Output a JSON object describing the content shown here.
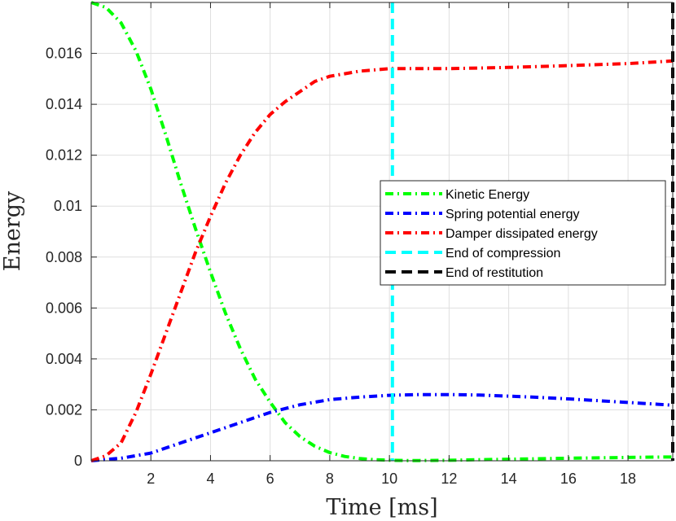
{
  "chart_data": {
    "type": "line",
    "xlabel": "Time [ms]",
    "ylabel": "Energy",
    "xlim": [
      0,
      19.5
    ],
    "ylim": [
      0,
      0.018
    ],
    "xticks": [
      2,
      4,
      6,
      8,
      10,
      12,
      14,
      16,
      18
    ],
    "yticks": [
      0,
      0.002,
      0.004,
      0.006,
      0.008,
      0.01,
      0.012,
      0.014,
      0.016
    ],
    "ytick_labels": [
      "0",
      "0.002",
      "0.004",
      "0.006",
      "0.008",
      "0.01",
      "0.012",
      "0.014",
      "0.016"
    ],
    "grid": true,
    "legend_position": "right",
    "series": [
      {
        "name": "Kinetic Energy",
        "color": "#00ff00",
        "style": "dashdot",
        "x": [
          0,
          0.5,
          1,
          1.5,
          2,
          2.5,
          3,
          3.5,
          4,
          4.5,
          5,
          5.5,
          6,
          6.5,
          7,
          7.5,
          8,
          8.5,
          9,
          9.5,
          10,
          10.5,
          11,
          12,
          13,
          14,
          16,
          18,
          19.5
        ],
        "y": [
          0.018,
          0.0178,
          0.0172,
          0.0161,
          0.0146,
          0.0128,
          0.0109,
          0.0091,
          0.0074,
          0.0058,
          0.0044,
          0.0032,
          0.0023,
          0.0015,
          0.00095,
          0.00057,
          0.00032,
          0.00017,
          9e-05,
          4e-05,
          2e-05,
          1e-05,
          1e-05,
          2e-05,
          4e-05,
          6e-05,
          0.0001,
          0.00013,
          0.00015
        ]
      },
      {
        "name": "Spring potential energy",
        "color": "#0000ff",
        "style": "dashdot",
        "x": [
          0,
          1,
          2,
          3,
          4,
          5,
          6,
          7,
          8,
          9,
          10,
          11,
          12,
          13,
          14,
          15,
          16,
          17,
          18,
          19,
          19.5
        ],
        "y": [
          0,
          0.0001,
          0.0003,
          0.0007,
          0.0011,
          0.0015,
          0.0019,
          0.0022,
          0.0024,
          0.0025,
          0.00257,
          0.0026,
          0.0026,
          0.00258,
          0.00254,
          0.00249,
          0.00243,
          0.00236,
          0.00229,
          0.00222,
          0.00218
        ]
      },
      {
        "name": "Damper dissipated energy",
        "color": "#ff0000",
        "style": "dashdot",
        "x": [
          0,
          0.5,
          1,
          1.5,
          2,
          2.5,
          3,
          3.5,
          4,
          4.5,
          5,
          5.5,
          6,
          6.5,
          7,
          7.5,
          8,
          8.5,
          9,
          9.5,
          10,
          11,
          12,
          14,
          16,
          18,
          19.5
        ],
        "y": [
          0,
          0.0002,
          0.0007,
          0.0019,
          0.0034,
          0.005,
          0.0066,
          0.0082,
          0.0096,
          0.0109,
          0.012,
          0.0129,
          0.0136,
          0.0141,
          0.0145,
          0.0149,
          0.0151,
          0.0152,
          0.0153,
          0.01535,
          0.0154,
          0.0154,
          0.0154,
          0.01545,
          0.01552,
          0.0156,
          0.0157
        ]
      },
      {
        "name": "End of compression",
        "color": "#00ffff",
        "style": "dashed",
        "vertical_x": 10.1
      },
      {
        "name": "End of restitution",
        "color": "#000000",
        "style": "dashed",
        "vertical_x": 19.5
      }
    ]
  }
}
